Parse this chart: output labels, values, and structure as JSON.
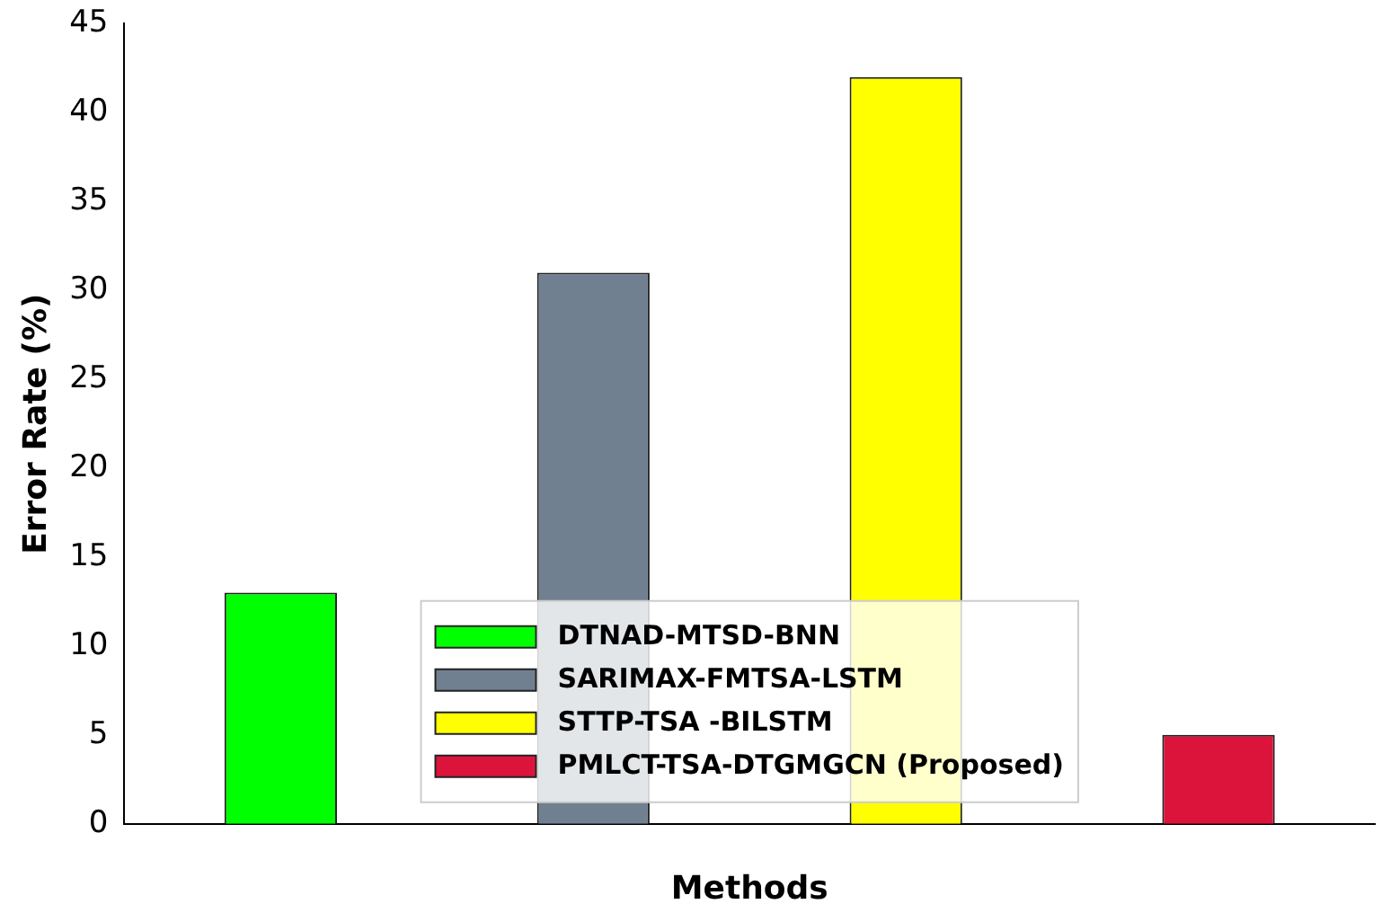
{
  "chart_data": {
    "type": "bar",
    "xlabel": "Methods",
    "ylabel": "Error Rate (%)",
    "categories": [
      null,
      null,
      null,
      null
    ],
    "series": [
      {
        "name": "DTNAD-MTSD-BNN",
        "color": "#00ff00",
        "values": [
          13,
          null,
          null,
          null
        ]
      },
      {
        "name": "SARIMAX-FMTSA-LSTM",
        "color": "#708090",
        "values": [
          null,
          31,
          null,
          null
        ]
      },
      {
        "name": "STTP-TSA -BILSTM",
        "color": "#ffff00",
        "values": [
          null,
          null,
          42,
          null
        ]
      },
      {
        "name": "PMLCT-TSA-DTGMGCN (Proposed)",
        "color": "#dc143c",
        "values": [
          null,
          null,
          null,
          5
        ]
      }
    ],
    "ylim": [
      0,
      45
    ],
    "yticks": [
      0,
      5,
      10,
      15,
      20,
      25,
      30,
      35,
      40,
      45
    ],
    "legend": "bottom"
  }
}
